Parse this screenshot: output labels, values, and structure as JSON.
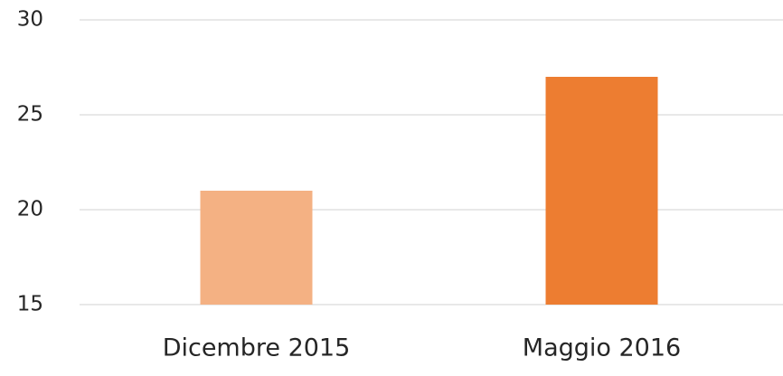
{
  "chart_data": {
    "type": "bar",
    "categories": [
      "Dicembre 2015",
      "Maggio 2016"
    ],
    "values": [
      21,
      27
    ],
    "colors": [
      "#f4b183",
      "#ed7d31"
    ],
    "ylim": [
      15,
      30
    ],
    "yticks": [
      15,
      20,
      25,
      30
    ],
    "grid": true
  }
}
